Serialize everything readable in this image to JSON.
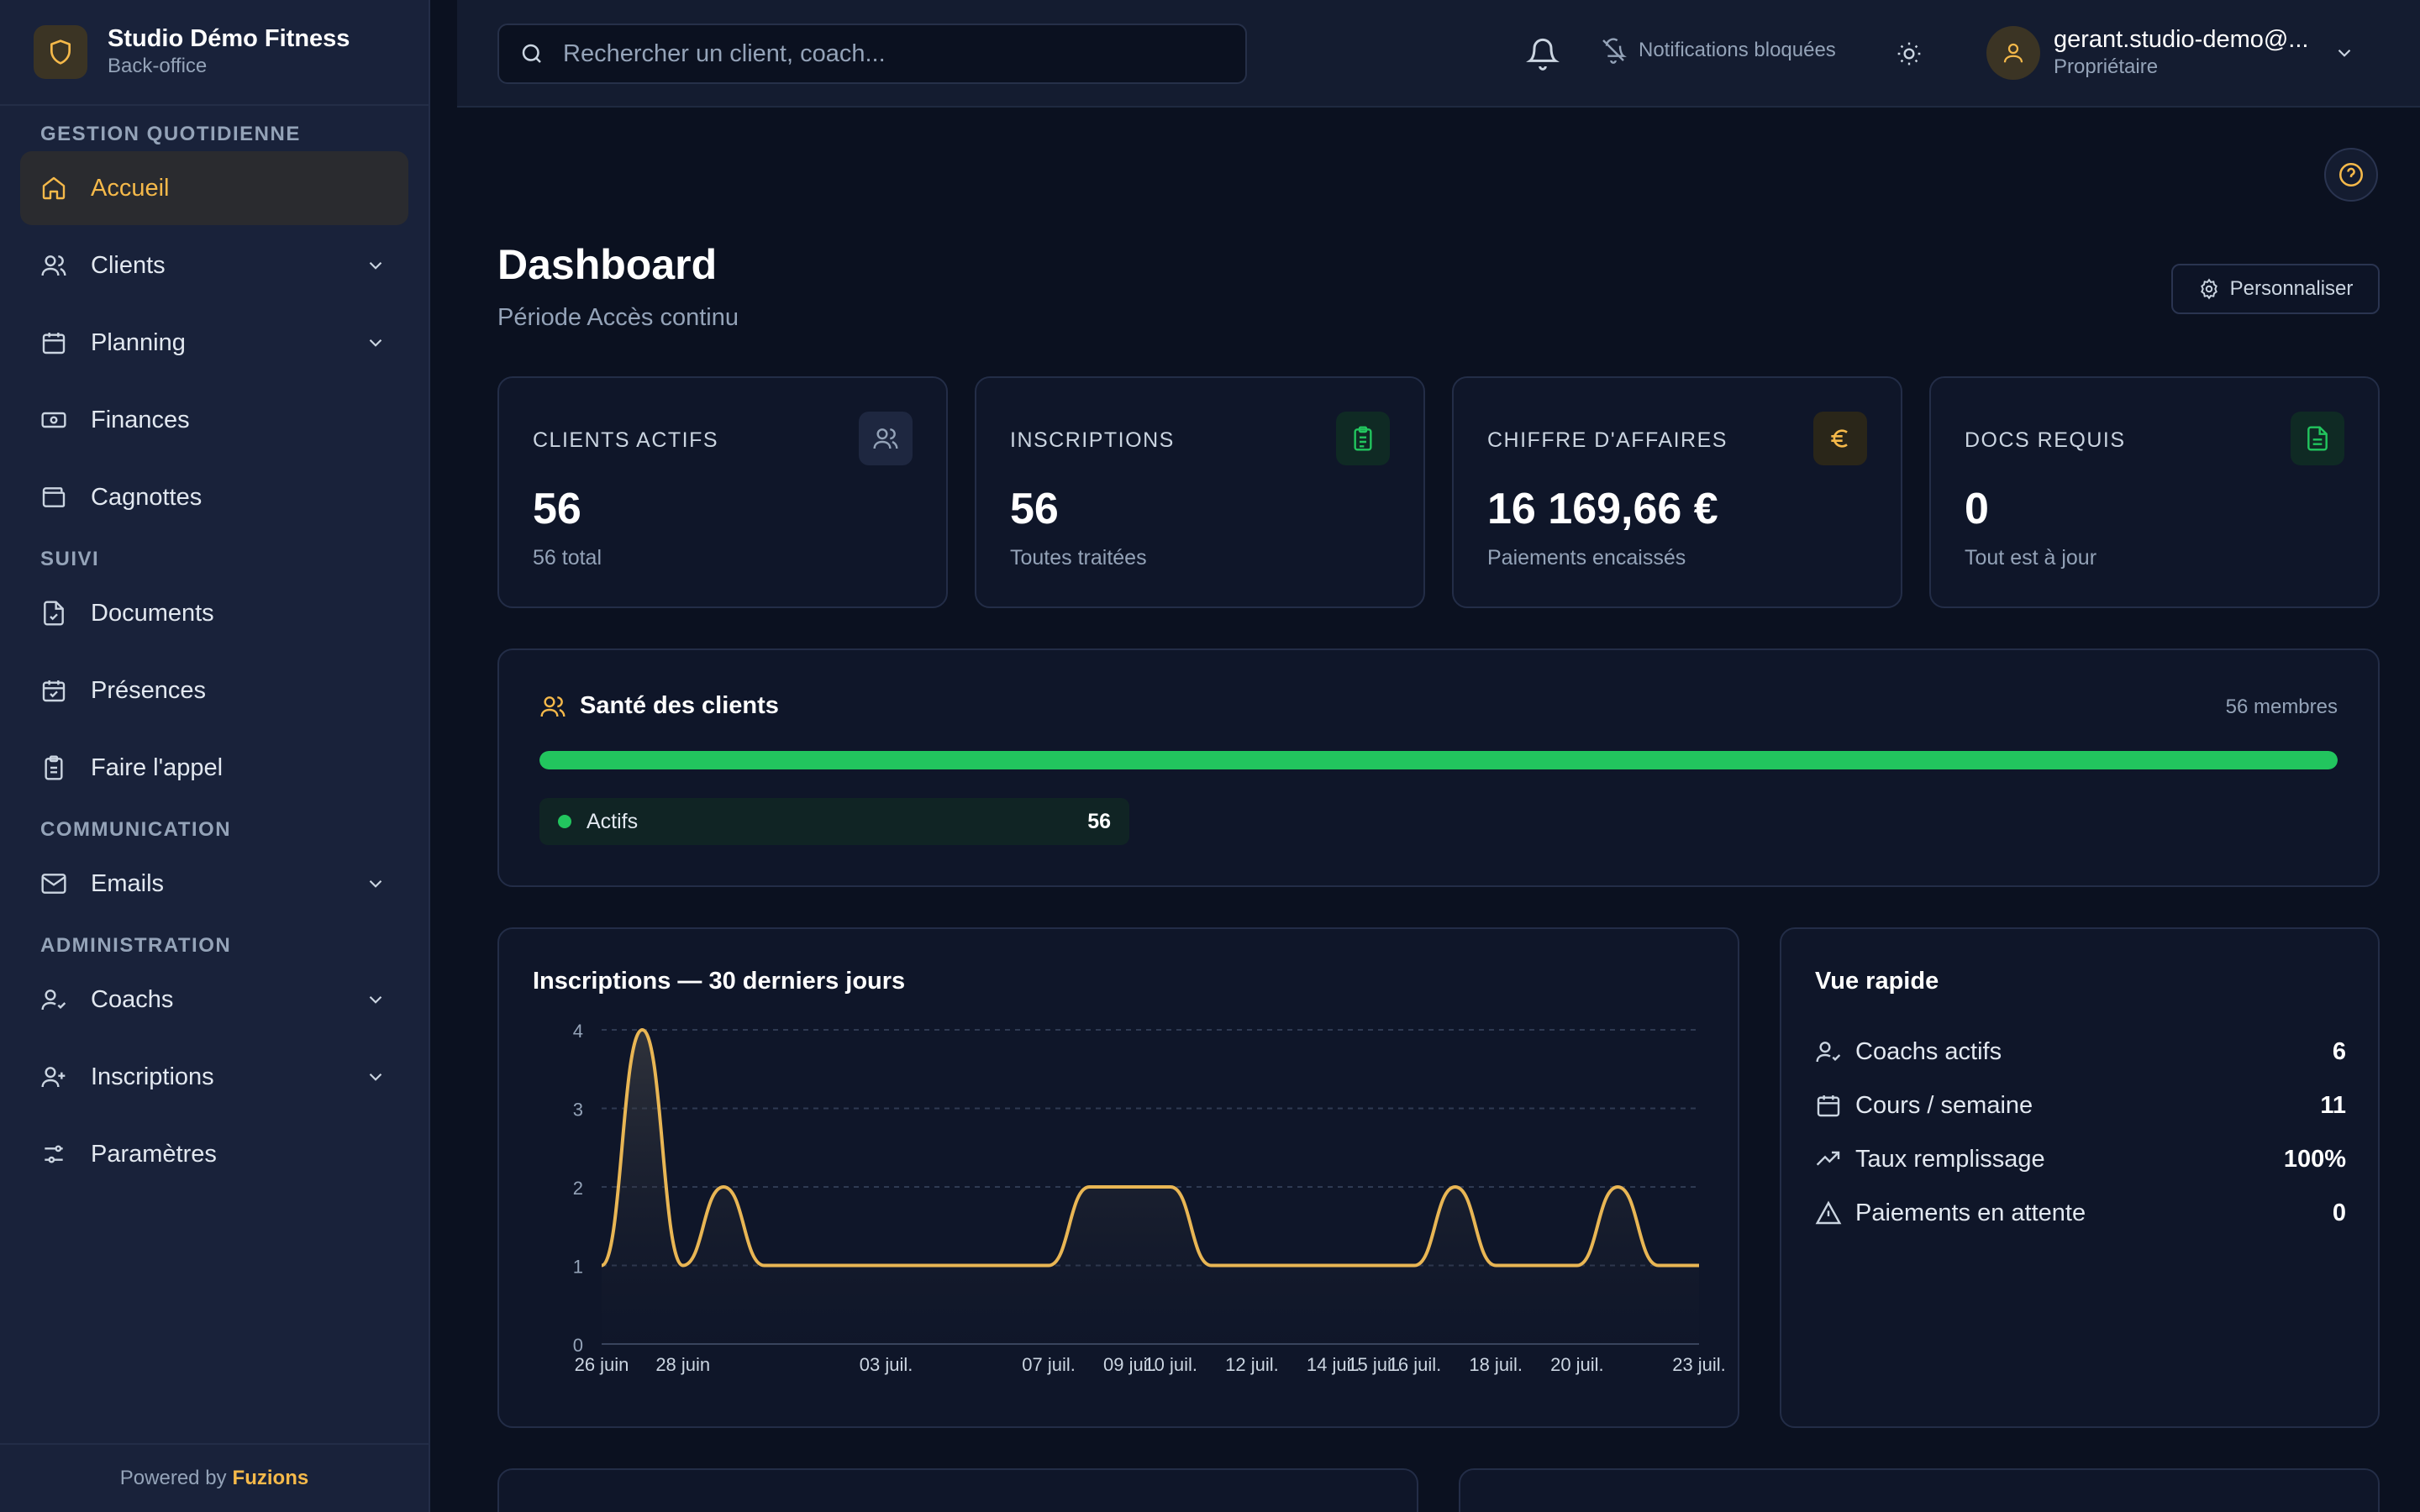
{
  "brand": {
    "name": "Studio Démo Fitness",
    "subtitle": "Back-office"
  },
  "sidebar": {
    "sections": [
      {
        "title": "GESTION QUOTIDIENNE",
        "items": [
          {
            "label": "Accueil",
            "icon": "home-icon",
            "active": true
          },
          {
            "label": "Clients",
            "icon": "users-icon",
            "has_children": true
          },
          {
            "label": "Planning",
            "icon": "calendar-icon",
            "has_children": true
          },
          {
            "label": "Finances",
            "icon": "banknote-icon"
          },
          {
            "label": "Cagnottes",
            "icon": "wallet-icon"
          }
        ]
      },
      {
        "title": "SUIVI",
        "items": [
          {
            "label": "Documents",
            "icon": "file-check-icon"
          },
          {
            "label": "Présences",
            "icon": "calendar-check-icon"
          },
          {
            "label": "Faire l'appel",
            "icon": "clipboard-icon"
          }
        ]
      },
      {
        "title": "COMMUNICATION",
        "items": [
          {
            "label": "Emails",
            "icon": "mail-icon",
            "has_children": true
          }
        ]
      },
      {
        "title": "ADMINISTRATION",
        "items": [
          {
            "label": "Coachs",
            "icon": "user-check-icon",
            "has_children": true
          },
          {
            "label": "Inscriptions",
            "icon": "user-plus-icon",
            "has_children": true
          },
          {
            "label": "Paramètres",
            "icon": "sliders-icon"
          }
        ]
      }
    ],
    "footer_prefix": "Powered by",
    "footer_brand": "Fuzions"
  },
  "topbar": {
    "search_placeholder": "Rechercher un client, coach...",
    "notifications_blocked": "Notifications bloquées",
    "user_name": "gerant.studio-demo@...",
    "user_role": "Propriétaire"
  },
  "page": {
    "title": "Dashboard",
    "subtitle": "Période Accès continu",
    "customize_label": "Personnaliser"
  },
  "kpis": [
    {
      "label": "CLIENTS ACTIFS",
      "value": "56",
      "sub": "56 total",
      "icon": "users-icon",
      "color": "#94a3b8",
      "icon_bg": "#1e2740"
    },
    {
      "label": "INSCRIPTIONS",
      "value": "56",
      "sub": "Toutes traitées",
      "icon": "clipboard-list-icon",
      "color": "#22c55e",
      "icon_bg": "#0f2a24"
    },
    {
      "label": "CHIFFRE D'AFFAIRES",
      "value": "16 169,66 €",
      "sub": "Paiements encaissés",
      "icon": "euro-icon",
      "color": "#f5b94a",
      "icon_bg": "#2a2619"
    },
    {
      "label": "DOCS REQUIS",
      "value": "0",
      "sub": "Tout est à jour",
      "icon": "file-text-icon",
      "color": "#22c55e",
      "icon_bg": "#0f2a24"
    }
  ],
  "health": {
    "title": "Santé des clients",
    "members": "56 membres",
    "active_label": "Actifs",
    "active_value": "56",
    "active_fraction": 1.0,
    "color": "#22c55e"
  },
  "chart_data": {
    "type": "area",
    "title": "Inscriptions — 30 derniers jours",
    "xlabel": "",
    "ylabel": "",
    "ylim": [
      0,
      4
    ],
    "yticks": [
      0,
      1,
      2,
      3,
      4
    ],
    "grid": true,
    "color": "#e9b654",
    "x": [
      "26 juin",
      "27 juin",
      "28 juin",
      "29 juin",
      "30 juin",
      "01 juil.",
      "02 juil.",
      "03 juil.",
      "04 juil.",
      "05 juil.",
      "06 juil.",
      "07 juil.",
      "08 juil.",
      "09 juil.",
      "10 juil.",
      "11 juil.",
      "12 juil.",
      "13 juil.",
      "14 juil.",
      "15 juil.",
      "16 juil.",
      "17 juil.",
      "18 juil.",
      "19 juil.",
      "20 juil.",
      "21 juil.",
      "22 juil.",
      "23 juil."
    ],
    "values": [
      1,
      4,
      1,
      2,
      1,
      1,
      1,
      1,
      1,
      1,
      1,
      1,
      2,
      2,
      2,
      1,
      1,
      1,
      1,
      1,
      1,
      2,
      1,
      1,
      1,
      2,
      1,
      1
    ],
    "xtick_labels": [
      "26 juin",
      "28 juin",
      "03 juil.",
      "07 juil.",
      "09 juil.",
      "10 juil.",
      "12 juil.",
      "14 juil.",
      "15 juil.",
      "16 juil.",
      "18 juil.",
      "20 juil.",
      "23 juil."
    ]
  },
  "quick": {
    "title": "Vue rapide",
    "rows": [
      {
        "label": "Coachs actifs",
        "value": "6",
        "icon": "user-check-icon"
      },
      {
        "label": "Cours / semaine",
        "value": "11",
        "icon": "calendar-icon"
      },
      {
        "label": "Taux remplissage",
        "value": "100%",
        "icon": "trending-up-icon"
      },
      {
        "label": "Paiements en attente",
        "value": "0",
        "icon": "alert-triangle-icon"
      }
    ]
  }
}
